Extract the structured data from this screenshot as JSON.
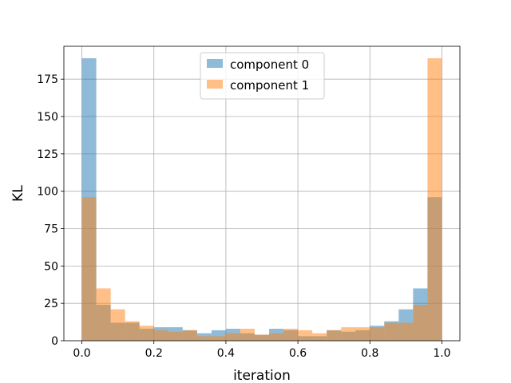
{
  "chart_data": {
    "type": "histogram",
    "title": "",
    "xlabel": "iteration",
    "ylabel": "KL",
    "xlim": [
      -0.05,
      1.05
    ],
    "ylim": [
      0,
      197
    ],
    "xticks": [
      "0.0",
      "0.2",
      "0.4",
      "0.6",
      "0.8",
      "1.0"
    ],
    "yticks": [
      "0",
      "25",
      "50",
      "75",
      "100",
      "125",
      "150",
      "175"
    ],
    "grid": true,
    "legend_position": "top-center",
    "bin_edges": [
      0.0,
      0.04,
      0.08,
      0.12,
      0.16,
      0.2,
      0.24,
      0.28,
      0.32,
      0.36,
      0.4,
      0.44,
      0.48,
      0.52,
      0.56,
      0.6,
      0.64,
      0.68,
      0.72,
      0.76,
      0.8,
      0.84,
      0.88,
      0.92,
      0.96,
      1.0
    ],
    "series": [
      {
        "name": "component 0",
        "color": "#1f77b4",
        "opacity": 0.5,
        "values": [
          189,
          24,
          12,
          12,
          8,
          9,
          9,
          7,
          5,
          7,
          8,
          5,
          4,
          8,
          7,
          3,
          3,
          7,
          6,
          7,
          10,
          13,
          21,
          35,
          96
        ]
      },
      {
        "name": "component 1",
        "color": "#ff7f0e",
        "opacity": 0.5,
        "values": [
          96,
          35,
          21,
          13,
          10,
          7,
          6,
          7,
          3,
          3,
          5,
          8,
          4,
          5,
          8,
          7,
          5,
          7,
          9,
          9,
          9,
          12,
          12,
          24,
          189
        ]
      }
    ]
  }
}
